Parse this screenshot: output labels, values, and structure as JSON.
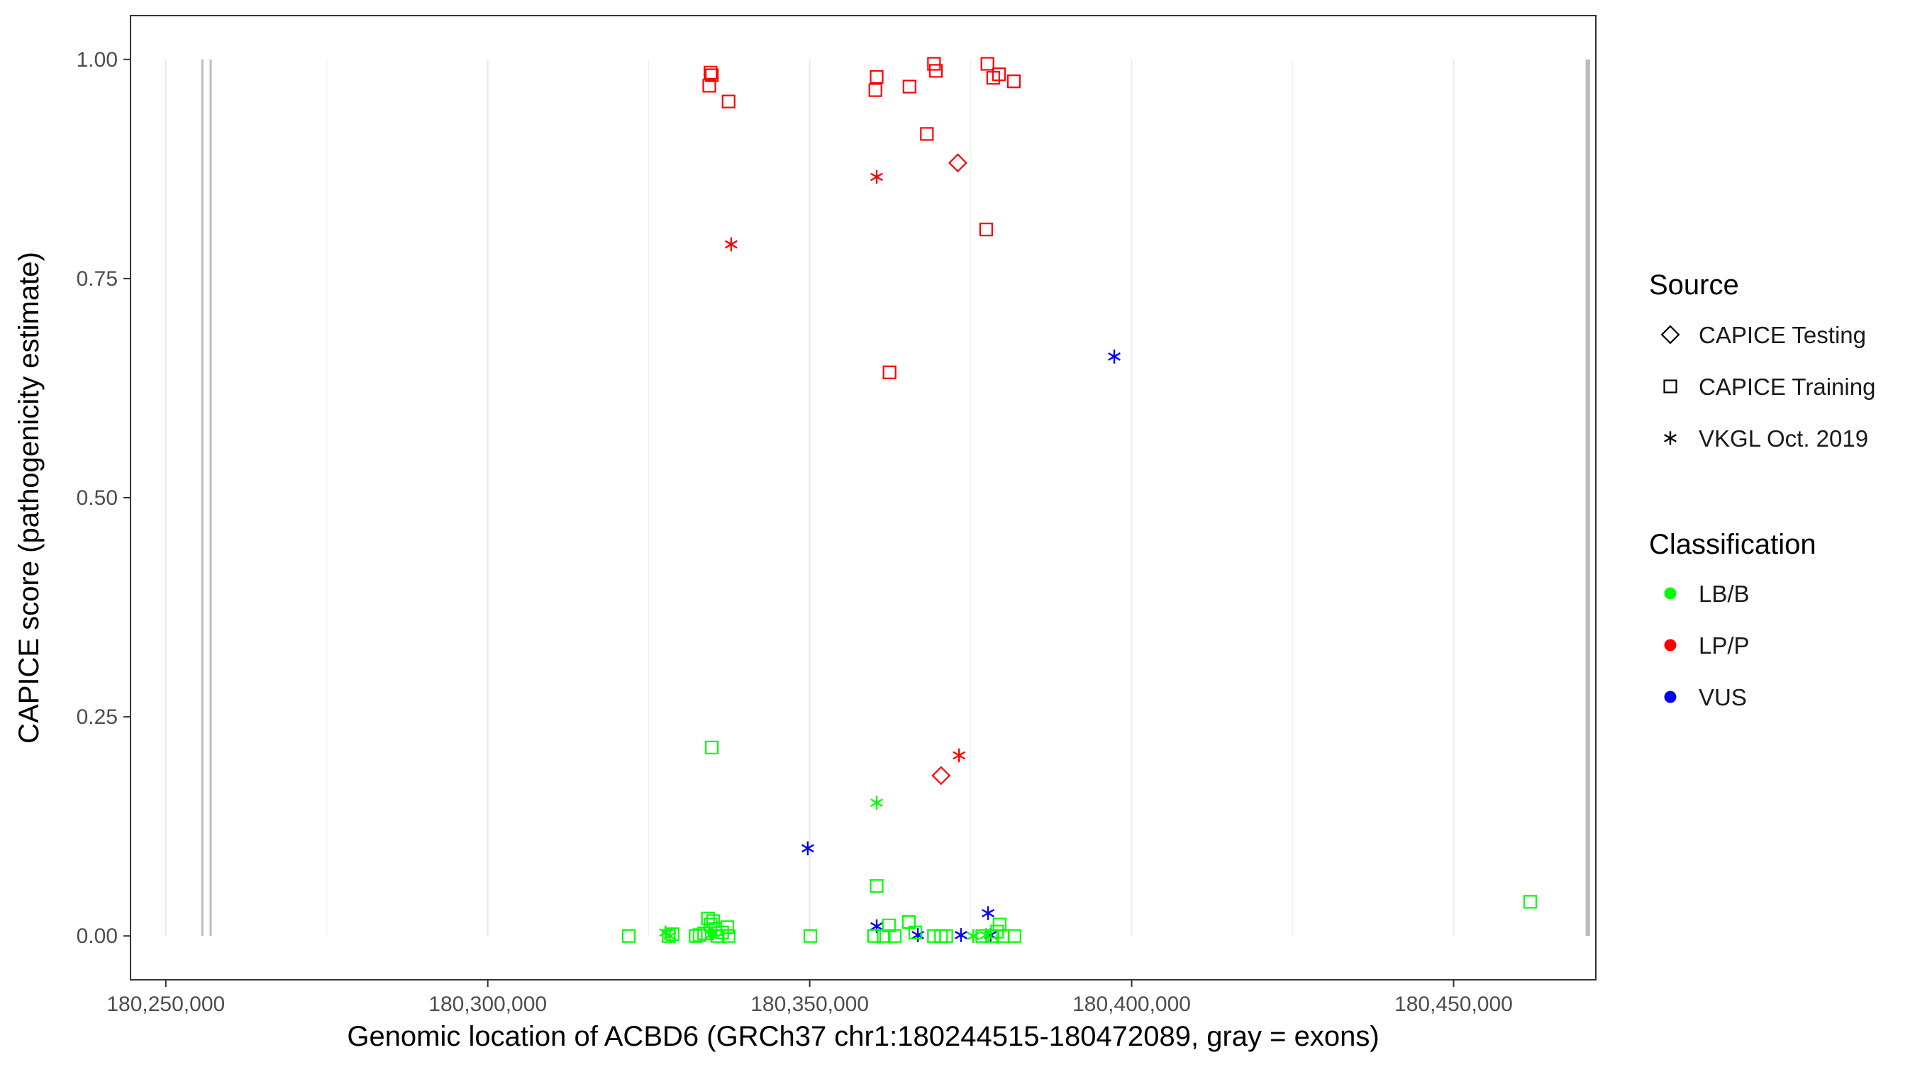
{
  "chart_data": {
    "type": "scatter",
    "title": "",
    "xlabel": "Genomic location of ACBD6 (GRCh37 chr1:180244515-180472089, gray = exons)",
    "ylabel": "CAPICE score (pathogenicity estimate)",
    "xlim": [
      180244515,
      180472089
    ],
    "ylim": [
      -0.05,
      1.05
    ],
    "x_ticks": [
      180250000,
      180300000,
      180350000,
      180400000,
      180450000
    ],
    "x_tick_labels": [
      "180,250,000",
      "180,300,000",
      "180,350,000",
      "180,400,000",
      "180,450,000"
    ],
    "y_ticks": [
      0,
      0.25,
      0.5,
      0.75,
      1
    ],
    "y_tick_labels": [
      "0.00",
      "0.25",
      "0.50",
      "0.75",
      "1.00"
    ],
    "grid": true,
    "legend_position": "right",
    "exons": [
      {
        "start": 180255500,
        "end": 180255800
      },
      {
        "start": 180256800,
        "end": 180257000
      },
      {
        "start": 180470500,
        "end": 180471200
      }
    ],
    "legend": {
      "source_title": "Source",
      "source_items": [
        {
          "label": "CAPICE Testing",
          "shape": "diamond"
        },
        {
          "label": "CAPICE Training",
          "shape": "square"
        },
        {
          "label": "VKGL Oct. 2019",
          "shape": "asterisk"
        }
      ],
      "classification_title": "Classification",
      "classification_items": [
        {
          "label": "LB/B",
          "color": "#00ff00"
        },
        {
          "label": "LP/P",
          "color": "#ff0000"
        },
        {
          "label": "VUS",
          "color": "#0000ff"
        }
      ]
    },
    "series": [
      {
        "source": "CAPICE Training",
        "classification": "LP/P",
        "shape": "square",
        "color": "#ff0000",
        "points": [
          [
            180334600,
            0.985
          ],
          [
            180334800,
            0.982
          ],
          [
            180334400,
            0.97
          ],
          [
            180337400,
            0.952
          ],
          [
            180360400,
            0.98
          ],
          [
            180360200,
            0.965
          ],
          [
            180365500,
            0.969
          ],
          [
            180369300,
            0.995
          ],
          [
            180369600,
            0.987
          ],
          [
            180377600,
            0.995
          ],
          [
            180378500,
            0.979
          ],
          [
            180379400,
            0.983
          ],
          [
            180381700,
            0.975
          ],
          [
            180368200,
            0.915
          ],
          [
            180377400,
            0.806
          ],
          [
            180362400,
            0.643
          ]
        ]
      },
      {
        "source": "CAPICE Testing",
        "classification": "LP/P",
        "shape": "diamond",
        "color": "#ff0000",
        "points": [
          [
            180373000,
            0.882
          ],
          [
            180370400,
            0.183
          ]
        ]
      },
      {
        "source": "VKGL Oct. 2019",
        "classification": "LP/P",
        "shape": "asterisk",
        "color": "#ff0000",
        "points": [
          [
            180360400,
            0.866
          ],
          [
            180337800,
            0.789
          ],
          [
            180373200,
            0.206
          ]
        ]
      },
      {
        "source": "VKGL Oct. 2019",
        "classification": "VUS",
        "shape": "asterisk",
        "color": "#0000ff",
        "points": [
          [
            180397300,
            0.661
          ],
          [
            180349700,
            0.1
          ],
          [
            180377700,
            0.026
          ],
          [
            180360400,
            0.011
          ],
          [
            180366800,
            0.001
          ],
          [
            180373500,
            0.001
          ],
          [
            180378100,
            0.001
          ]
        ]
      },
      {
        "source": "CAPICE Training",
        "classification": "LB/B",
        "shape": "square",
        "color": "#00ff00",
        "points": [
          [
            180334800,
            0.215
          ],
          [
            180360400,
            0.057
          ],
          [
            180461900,
            0.039
          ],
          [
            180321900,
            0.0
          ],
          [
            180328100,
            0.0
          ],
          [
            180328700,
            0.002
          ],
          [
            180332300,
            0.0
          ],
          [
            180332900,
            0.001
          ],
          [
            180333600,
            0.003
          ],
          [
            180334200,
            0.02
          ],
          [
            180334600,
            0.013
          ],
          [
            180335000,
            0.017
          ],
          [
            180335300,
            0.008
          ],
          [
            180335700,
            0.0
          ],
          [
            180336400,
            0.004
          ],
          [
            180337200,
            0.01
          ],
          [
            180337400,
            0.0
          ],
          [
            180350100,
            0.0
          ],
          [
            180360000,
            0.0
          ],
          [
            180361500,
            0.0
          ],
          [
            180362300,
            0.012
          ],
          [
            180363200,
            0.0
          ],
          [
            180365400,
            0.016
          ],
          [
            180366400,
            0.004
          ],
          [
            180369300,
            0.0
          ],
          [
            180370400,
            0.0
          ],
          [
            180371200,
            0.0
          ],
          [
            180376800,
            0.0
          ],
          [
            180378400,
            0.0
          ],
          [
            180379100,
            0.005
          ],
          [
            180379500,
            0.013
          ],
          [
            180380000,
            0.0
          ],
          [
            180381800,
            0.0
          ]
        ]
      },
      {
        "source": "VKGL Oct. 2019",
        "classification": "LB/B",
        "shape": "asterisk",
        "color": "#00ff00",
        "points": [
          [
            180360400,
            0.152
          ],
          [
            180327600,
            0.004
          ],
          [
            180328300,
            0.0
          ],
          [
            180334700,
            0.001
          ],
          [
            180335000,
            0.003
          ],
          [
            180375400,
            0.0
          ],
          [
            180377400,
            0.001
          ]
        ]
      }
    ]
  }
}
